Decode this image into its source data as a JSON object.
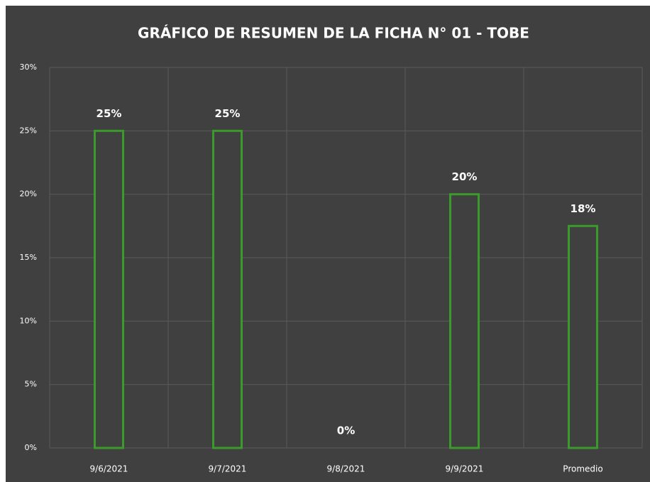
{
  "chart_data": {
    "type": "bar",
    "title": "GRÁFICO DE RESUMEN DE LA FICHA N° 01 - TOBE",
    "categories": [
      "9/6/2021",
      "9/7/2021",
      "9/8/2021",
      "9/9/2021",
      "Promedio"
    ],
    "values": [
      25,
      25,
      0,
      20,
      17.5
    ],
    "value_labels": [
      "25%",
      "25%",
      "0%",
      "20%",
      "18%"
    ],
    "color": "#3c9a2c",
    "ylim": [
      0,
      30
    ],
    "yticks": [
      {
        "value": 0,
        "label": "0%"
      },
      {
        "value": 5,
        "label": "5%"
      },
      {
        "value": 10,
        "label": "10%"
      },
      {
        "value": 15,
        "label": "15%"
      },
      {
        "value": 20,
        "label": "20%"
      },
      {
        "value": 25,
        "label": "25%"
      },
      {
        "value": 30,
        "label": "30%"
      }
    ],
    "grid": true
  }
}
